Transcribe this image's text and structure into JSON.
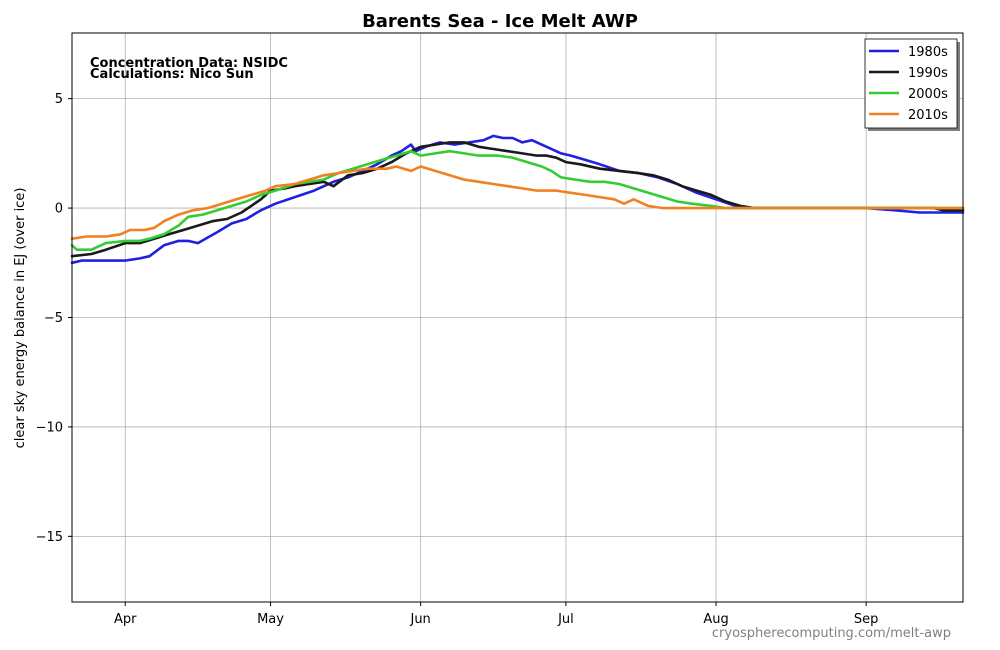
{
  "chart_data": {
    "type": "line",
    "title": "Barents Sea - Ice Melt AWP",
    "ylabel": "clear sky energy balance in EJ (over ice)",
    "xlabel": "",
    "annotations": [
      "Concentration Data: NSIDC",
      "Calculations: Nico Sun"
    ],
    "credit": "cryospherecomputing.com/melt-awp",
    "xlim": [
      "2000-03-21",
      "2000-09-21"
    ],
    "ylim": [
      -18,
      8
    ],
    "x_ticks": [
      {
        "date": "2000-04-01",
        "label": "Apr"
      },
      {
        "date": "2000-05-01",
        "label": "May"
      },
      {
        "date": "2000-06-01",
        "label": "Jun"
      },
      {
        "date": "2000-07-01",
        "label": "Jul"
      },
      {
        "date": "2000-08-01",
        "label": "Aug"
      },
      {
        "date": "2000-09-01",
        "label": "Sep"
      }
    ],
    "y_ticks": [
      {
        "value": 5,
        "label": "5"
      },
      {
        "value": 0,
        "label": "0"
      },
      {
        "value": -5,
        "label": "−5"
      },
      {
        "value": -10,
        "label": "−10"
      },
      {
        "value": -15,
        "label": "−15"
      }
    ],
    "grid": true,
    "legend_position": "top-right",
    "series": [
      {
        "name": "1980s",
        "color": "#2020e0",
        "points": [
          [
            "2000-03-21",
            -2.5
          ],
          [
            "2000-03-23",
            -2.4
          ],
          [
            "2000-04-01",
            -2.4
          ],
          [
            "2000-04-04",
            -2.3
          ],
          [
            "2000-04-06",
            -2.2
          ],
          [
            "2000-04-09",
            -1.7
          ],
          [
            "2000-04-12",
            -1.5
          ],
          [
            "2000-04-14",
            -1.5
          ],
          [
            "2000-04-16",
            -1.6
          ],
          [
            "2000-04-20",
            -1.1
          ],
          [
            "2000-04-23",
            -0.7
          ],
          [
            "2000-04-26",
            -0.5
          ],
          [
            "2000-04-29",
            -0.1
          ],
          [
            "2000-05-02",
            0.2
          ],
          [
            "2000-05-06",
            0.5
          ],
          [
            "2000-05-10",
            0.8
          ],
          [
            "2000-05-14",
            1.2
          ],
          [
            "2000-05-17",
            1.4
          ],
          [
            "2000-05-20",
            1.7
          ],
          [
            "2000-05-23",
            2.0
          ],
          [
            "2000-05-26",
            2.4
          ],
          [
            "2000-05-28",
            2.6
          ],
          [
            "2000-05-30",
            2.9
          ],
          [
            "2000-05-31",
            2.6
          ],
          [
            "2000-06-02",
            2.8
          ],
          [
            "2000-06-05",
            3.0
          ],
          [
            "2000-06-08",
            2.9
          ],
          [
            "2000-06-11",
            3.0
          ],
          [
            "2000-06-14",
            3.1
          ],
          [
            "2000-06-16",
            3.3
          ],
          [
            "2000-06-18",
            3.2
          ],
          [
            "2000-06-20",
            3.2
          ],
          [
            "2000-06-22",
            3.0
          ],
          [
            "2000-06-24",
            3.1
          ],
          [
            "2000-06-27",
            2.8
          ],
          [
            "2000-06-30",
            2.5
          ],
          [
            "2000-07-02",
            2.4
          ],
          [
            "2000-07-05",
            2.2
          ],
          [
            "2000-07-08",
            2.0
          ],
          [
            "2000-07-12",
            1.7
          ],
          [
            "2000-07-16",
            1.6
          ],
          [
            "2000-07-20",
            1.4
          ],
          [
            "2000-07-24",
            1.1
          ],
          [
            "2000-07-28",
            0.7
          ],
          [
            "2000-08-01",
            0.4
          ],
          [
            "2000-08-05",
            0.1
          ],
          [
            "2000-08-08",
            0.0
          ],
          [
            "2000-09-01",
            0.0
          ],
          [
            "2000-09-07",
            -0.1
          ],
          [
            "2000-09-12",
            -0.2
          ],
          [
            "2000-09-21",
            -0.2
          ]
        ]
      },
      {
        "name": "1990s",
        "color": "#1a1a1a",
        "points": [
          [
            "2000-03-21",
            -2.2
          ],
          [
            "2000-03-25",
            -2.1
          ],
          [
            "2000-03-28",
            -1.9
          ],
          [
            "2000-04-01",
            -1.6
          ],
          [
            "2000-04-04",
            -1.6
          ],
          [
            "2000-04-07",
            -1.4
          ],
          [
            "2000-04-10",
            -1.2
          ],
          [
            "2000-04-13",
            -1.0
          ],
          [
            "2000-04-16",
            -0.8
          ],
          [
            "2000-04-19",
            -0.6
          ],
          [
            "2000-04-22",
            -0.5
          ],
          [
            "2000-04-25",
            -0.2
          ],
          [
            "2000-04-27",
            0.1
          ],
          [
            "2000-04-29",
            0.4
          ],
          [
            "2000-05-01",
            0.8
          ],
          [
            "2000-05-04",
            0.9
          ],
          [
            "2000-05-06",
            1.0
          ],
          [
            "2000-05-09",
            1.1
          ],
          [
            "2000-05-12",
            1.2
          ],
          [
            "2000-05-14",
            1.0
          ],
          [
            "2000-05-17",
            1.5
          ],
          [
            "2000-05-20",
            1.6
          ],
          [
            "2000-05-23",
            1.8
          ],
          [
            "2000-05-26",
            2.1
          ],
          [
            "2000-05-29",
            2.5
          ],
          [
            "2000-06-01",
            2.8
          ],
          [
            "2000-06-04",
            2.9
          ],
          [
            "2000-06-07",
            3.0
          ],
          [
            "2000-06-10",
            3.0
          ],
          [
            "2000-06-13",
            2.8
          ],
          [
            "2000-06-16",
            2.7
          ],
          [
            "2000-06-19",
            2.6
          ],
          [
            "2000-06-22",
            2.5
          ],
          [
            "2000-06-25",
            2.4
          ],
          [
            "2000-06-27",
            2.4
          ],
          [
            "2000-06-29",
            2.3
          ],
          [
            "2000-07-01",
            2.1
          ],
          [
            "2000-07-04",
            2.0
          ],
          [
            "2000-07-08",
            1.8
          ],
          [
            "2000-07-12",
            1.7
          ],
          [
            "2000-07-16",
            1.6
          ],
          [
            "2000-07-19",
            1.5
          ],
          [
            "2000-07-22",
            1.3
          ],
          [
            "2000-07-25",
            1.0
          ],
          [
            "2000-07-28",
            0.8
          ],
          [
            "2000-07-31",
            0.6
          ],
          [
            "2000-08-03",
            0.3
          ],
          [
            "2000-08-06",
            0.1
          ],
          [
            "2000-08-09",
            0.0
          ],
          [
            "2000-09-15",
            0.0
          ],
          [
            "2000-09-17",
            -0.1
          ],
          [
            "2000-09-21",
            -0.1
          ]
        ]
      },
      {
        "name": "2000s",
        "color": "#33cc33",
        "points": [
          [
            "2000-03-21",
            -1.7
          ],
          [
            "2000-03-22",
            -1.9
          ],
          [
            "2000-03-25",
            -1.9
          ],
          [
            "2000-03-28",
            -1.6
          ],
          [
            "2000-04-01",
            -1.5
          ],
          [
            "2000-04-04",
            -1.5
          ],
          [
            "2000-04-06",
            -1.4
          ],
          [
            "2000-04-09",
            -1.2
          ],
          [
            "2000-04-12",
            -0.8
          ],
          [
            "2000-04-14",
            -0.4
          ],
          [
            "2000-04-17",
            -0.3
          ],
          [
            "2000-04-20",
            -0.1
          ],
          [
            "2000-04-23",
            0.1
          ],
          [
            "2000-04-26",
            0.3
          ],
          [
            "2000-04-29",
            0.6
          ],
          [
            "2000-05-02",
            0.8
          ],
          [
            "2000-05-06",
            1.1
          ],
          [
            "2000-05-09",
            1.2
          ],
          [
            "2000-05-12",
            1.3
          ],
          [
            "2000-05-15",
            1.6
          ],
          [
            "2000-05-18",
            1.8
          ],
          [
            "2000-05-21",
            2.0
          ],
          [
            "2000-05-24",
            2.2
          ],
          [
            "2000-05-27",
            2.4
          ],
          [
            "2000-05-30",
            2.6
          ],
          [
            "2000-06-01",
            2.4
          ],
          [
            "2000-06-04",
            2.5
          ],
          [
            "2000-06-07",
            2.6
          ],
          [
            "2000-06-10",
            2.5
          ],
          [
            "2000-06-13",
            2.4
          ],
          [
            "2000-06-17",
            2.4
          ],
          [
            "2000-06-20",
            2.3
          ],
          [
            "2000-06-23",
            2.1
          ],
          [
            "2000-06-26",
            1.9
          ],
          [
            "2000-06-28",
            1.7
          ],
          [
            "2000-06-30",
            1.4
          ],
          [
            "2000-07-03",
            1.3
          ],
          [
            "2000-07-06",
            1.2
          ],
          [
            "2000-07-09",
            1.2
          ],
          [
            "2000-07-12",
            1.1
          ],
          [
            "2000-07-15",
            0.9
          ],
          [
            "2000-07-18",
            0.7
          ],
          [
            "2000-07-21",
            0.5
          ],
          [
            "2000-07-24",
            0.3
          ],
          [
            "2000-07-27",
            0.2
          ],
          [
            "2000-07-31",
            0.1
          ],
          [
            "2000-08-03",
            0.0
          ],
          [
            "2000-09-21",
            0.0
          ]
        ]
      },
      {
        "name": "2010s",
        "color": "#f08020",
        "points": [
          [
            "2000-03-21",
            -1.4
          ],
          [
            "2000-03-24",
            -1.3
          ],
          [
            "2000-03-28",
            -1.3
          ],
          [
            "2000-03-31",
            -1.2
          ],
          [
            "2000-04-02",
            -1.0
          ],
          [
            "2000-04-05",
            -1.0
          ],
          [
            "2000-04-07",
            -0.9
          ],
          [
            "2000-04-09",
            -0.6
          ],
          [
            "2000-04-12",
            -0.3
          ],
          [
            "2000-04-15",
            -0.1
          ],
          [
            "2000-04-18",
            0.0
          ],
          [
            "2000-04-21",
            0.2
          ],
          [
            "2000-04-24",
            0.4
          ],
          [
            "2000-04-27",
            0.6
          ],
          [
            "2000-04-30",
            0.8
          ],
          [
            "2000-05-02",
            1.0
          ],
          [
            "2000-05-06",
            1.1
          ],
          [
            "2000-05-09",
            1.3
          ],
          [
            "2000-05-12",
            1.5
          ],
          [
            "2000-05-15",
            1.6
          ],
          [
            "2000-05-18",
            1.7
          ],
          [
            "2000-05-21",
            1.8
          ],
          [
            "2000-05-25",
            1.8
          ],
          [
            "2000-05-27",
            1.9
          ],
          [
            "2000-05-30",
            1.7
          ],
          [
            "2000-06-01",
            1.9
          ],
          [
            "2000-06-04",
            1.7
          ],
          [
            "2000-06-07",
            1.5
          ],
          [
            "2000-06-10",
            1.3
          ],
          [
            "2000-06-13",
            1.2
          ],
          [
            "2000-06-16",
            1.1
          ],
          [
            "2000-06-19",
            1.0
          ],
          [
            "2000-06-22",
            0.9
          ],
          [
            "2000-06-25",
            0.8
          ],
          [
            "2000-06-29",
            0.8
          ],
          [
            "2000-07-02",
            0.7
          ],
          [
            "2000-07-05",
            0.6
          ],
          [
            "2000-07-08",
            0.5
          ],
          [
            "2000-07-11",
            0.4
          ],
          [
            "2000-07-13",
            0.2
          ],
          [
            "2000-07-15",
            0.4
          ],
          [
            "2000-07-18",
            0.1
          ],
          [
            "2000-07-21",
            0.0
          ],
          [
            "2000-09-21",
            0.0
          ]
        ]
      }
    ]
  }
}
